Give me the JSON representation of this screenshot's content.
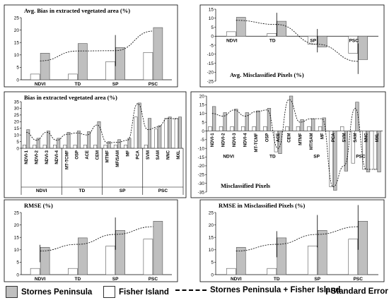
{
  "colors": {
    "stornes": "#bfbfbf",
    "fisher": "#ffffff",
    "axis": "#000000",
    "trend": "#000000"
  },
  "legend": {
    "stornes": "Stornes Peninsula",
    "fisher": "Fisher Island",
    "combined": "Stornes Peninsula + Fisher Island",
    "error_symbol": "I",
    "error": "Standard Error"
  },
  "chart_data": [
    {
      "id": "avg-bias",
      "type": "bar",
      "title": "Avg. Bias in extracted vegetated area (%)",
      "categories": [
        "NDVI",
        "TD",
        "SP",
        "PSC"
      ],
      "ylim": [
        0,
        25
      ],
      "yticks": [
        0,
        5,
        10,
        15,
        20,
        25
      ],
      "series": [
        {
          "name": "Fisher Island",
          "values": [
            2.3,
            2.3,
            7.3,
            11
          ]
        },
        {
          "name": "Stornes Peninsula",
          "values": [
            10.7,
            14.6,
            13,
            21
          ]
        }
      ],
      "trend": [
        7.6,
        11.6,
        11.7,
        19.6
      ],
      "error": [
        [
          null,
          null
        ],
        [
          null,
          null
        ],
        [
          5.5,
          18
        ],
        [
          null,
          null
        ]
      ]
    },
    {
      "id": "avg-misclassified",
      "type": "bar",
      "title": "Avg. Misclassified Pixels (%)",
      "categories": [
        "NDVI",
        "TD",
        "SP",
        "PSC"
      ],
      "ylim": [
        -25,
        15
      ],
      "yticks": [
        -25,
        -20,
        -15,
        -10,
        -5,
        0,
        5,
        10,
        15
      ],
      "series": [
        {
          "name": "Fisher Island",
          "values": [
            2.5,
            1.5,
            -4.5,
            -9.5
          ]
        },
        {
          "name": "Stornes Peninsula",
          "values": [
            10.5,
            8.3,
            -6,
            -13
          ]
        }
      ],
      "trend": [
        8.8,
        6.5,
        -4.5,
        -14
      ],
      "error": [
        [
          null,
          null
        ],
        [
          0,
          13
        ],
        [
          -9,
          4
        ],
        [
          -21,
          -4
        ]
      ]
    },
    {
      "id": "bias-detailed",
      "type": "bar",
      "title": "Bias in extracted vegetated area (%)",
      "categories": [
        "NDVI-1",
        "NDVI-2",
        "NDVI-3",
        "NDVI-4",
        "MT-TCMF",
        "OSP",
        "ACE",
        "CEM",
        "MTMF",
        "MF/SAM",
        "MF",
        "PCA",
        "SVM",
        "SAM",
        "NNC",
        "MXL"
      ],
      "groups": [
        {
          "label": "NDVI",
          "count": 4
        },
        {
          "label": "TD",
          "count": 4
        },
        {
          "label": "SP",
          "count": 4
        },
        {
          "label": "PSC",
          "count": 4
        }
      ],
      "ylim": [
        0,
        35
      ],
      "yticks": [
        0,
        5,
        10,
        15,
        20,
        25,
        30,
        35
      ],
      "series": [
        {
          "name": "Fisher Island",
          "values": [
            2.5,
            2.5,
            2.5,
            2.5,
            2.5,
            2.5,
            2.5,
            2.5,
            2.5,
            2.5,
            2.5,
            23.5,
            2.5,
            14.5,
            22.5,
            22.5
          ]
        },
        {
          "name": "Stornes Peninsula",
          "values": [
            14,
            7.5,
            13,
            7.5,
            12,
            13,
            12.5,
            20,
            5,
            6.5,
            7.5,
            34,
            22.5,
            17,
            23.5,
            23.5
          ]
        }
      ],
      "trend": [
        12,
        6,
        12,
        6,
        10.5,
        11.5,
        10,
        17.5,
        4,
        4.5,
        6,
        33.5,
        14,
        16,
        22.5,
        22
      ]
    },
    {
      "id": "misclassified-detailed",
      "type": "bar",
      "title": "Misclassified Pixels",
      "categories": [
        "NDVI-1",
        "NDVI-2",
        "NDVI-3",
        "NDVI-4",
        "MT-TCMF",
        "OSP",
        "ACE",
        "CEM",
        "MTMF",
        "MT/SAM",
        "MF",
        "PCA",
        "SVM",
        "SAM",
        "NNC",
        "MXL"
      ],
      "groups": [
        {
          "label": "NDVI",
          "count": 4
        },
        {
          "label": "TD",
          "count": 4
        },
        {
          "label": "SP",
          "count": 4
        },
        {
          "label": "PSC",
          "count": 4
        }
      ],
      "ylim": [
        -35,
        20
      ],
      "yticks": [
        -35,
        -30,
        -25,
        -20,
        -15,
        -10,
        -5,
        0,
        5,
        10,
        15,
        20
      ],
      "series": [
        {
          "name": "Fisher Island",
          "values": [
            2.5,
            2.5,
            2.5,
            2.5,
            2.5,
            2.5,
            -12,
            2.5,
            2.5,
            2.5,
            2.5,
            -32,
            2.5,
            -18.5,
            -22,
            -22
          ]
        },
        {
          "name": "Stornes Peninsula",
          "values": [
            14,
            10.5,
            12.5,
            10.5,
            11.5,
            13,
            -13,
            20,
            6.5,
            7,
            7.5,
            -34,
            -23,
            16.5,
            -23.5,
            -23.5
          ]
        }
      ],
      "trend": [
        10,
        8.5,
        12,
        8.5,
        11,
        12,
        -10,
        18,
        5,
        7,
        7,
        -32,
        -20,
        13,
        -22,
        -22
      ]
    },
    {
      "id": "rmse",
      "type": "bar",
      "title": "RMSE (%)",
      "categories": [
        "NDVI",
        "TD",
        "SP",
        "PSC"
      ],
      "ylim": [
        0,
        25
      ],
      "yticks": [
        0,
        5,
        10,
        15,
        20,
        25
      ],
      "series": [
        {
          "name": "Fisher Island",
          "values": [
            2.5,
            2.5,
            11.5,
            14.3
          ]
        },
        {
          "name": "Stornes Peninsula",
          "values": [
            11,
            14.8,
            17.8,
            21.5
          ]
        }
      ],
      "trend": [
        9.5,
        12.2,
        16.2,
        19.3
      ],
      "error": [
        [
          5,
          12
        ],
        [
          null,
          null
        ],
        [
          10,
          23
        ],
        [
          null,
          null
        ]
      ]
    },
    {
      "id": "rmse-misclassified",
      "type": "bar",
      "title": "RMSE in Misclassified Pixels (%)",
      "categories": [
        "NDVI",
        "TD",
        "SP",
        "PSC"
      ],
      "ylim": [
        0,
        25
      ],
      "yticks": [
        0,
        5,
        10,
        15,
        20,
        25
      ],
      "series": [
        {
          "name": "Fisher Island",
          "values": [
            2.5,
            2.5,
            11.5,
            14.3
          ]
        },
        {
          "name": "Stornes Peninsula",
          "values": [
            11,
            14.8,
            17.8,
            21.5
          ]
        }
      ],
      "trend": [
        9.5,
        12.2,
        16.2,
        19.3
      ],
      "error": [
        [
          null,
          null
        ],
        [
          7,
          17.5
        ],
        [
          11,
          24
        ],
        [
          10,
          28
        ]
      ]
    }
  ]
}
